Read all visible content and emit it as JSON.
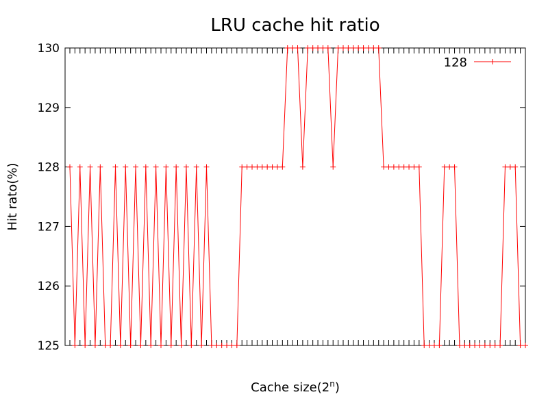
{
  "chart_data": {
    "type": "line",
    "title": "LRU cache hit ratio",
    "xlabel": "Cache size(2",
    "xlabel_superscript": "n",
    "xlabel_suffix": ")",
    "ylabel": "Hit rato(%)",
    "ylim": [
      125,
      130
    ],
    "yticks": [
      125,
      126,
      127,
      128,
      129,
      130
    ],
    "grid": false,
    "legend_position": "top-right",
    "colors": {
      "series": "#ff0000",
      "axis": "#000000"
    },
    "series": [
      {
        "name": "128",
        "values": [
          128,
          125,
          128,
          125,
          128,
          125,
          128,
          125,
          125,
          128,
          125,
          128,
          125,
          128,
          125,
          128,
          125,
          128,
          125,
          128,
          125,
          128,
          125,
          128,
          125,
          128,
          125,
          128,
          125,
          125,
          125,
          125,
          125,
          125,
          128,
          128,
          128,
          128,
          128,
          128,
          128,
          128,
          128,
          130,
          130,
          130,
          128,
          130,
          130,
          130,
          130,
          130,
          128,
          130,
          130,
          130,
          130,
          130,
          130,
          130,
          130,
          130,
          128,
          128,
          128,
          128,
          128,
          128,
          128,
          128,
          125,
          125,
          125,
          125,
          128,
          128,
          128,
          125,
          125,
          125,
          125,
          125,
          125,
          125,
          125,
          125,
          128,
          128,
          128,
          125,
          125
        ]
      }
    ]
  }
}
